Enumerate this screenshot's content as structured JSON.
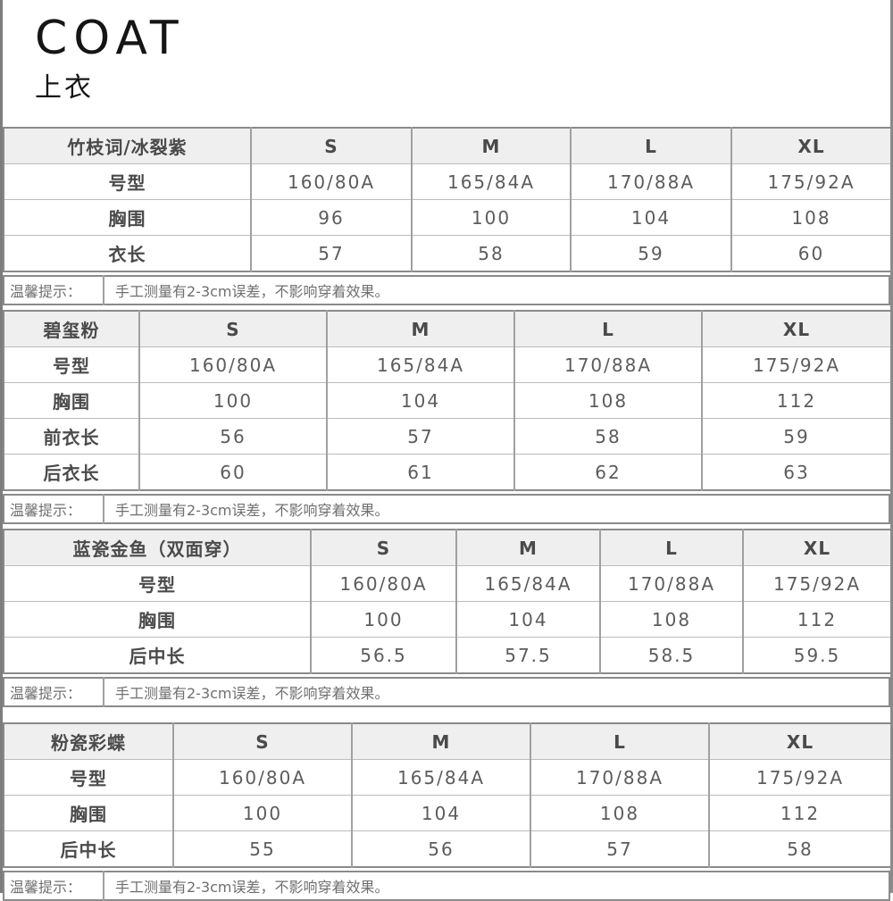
{
  "page": {
    "title": "COAT",
    "subtitle": "上衣"
  },
  "tip": {
    "label": "温馨提示：",
    "text": "手工测量有2-3cm误差，不影响穿着效果。"
  },
  "tables": [
    {
      "name": "竹枝词/冰裂紫",
      "sizes": [
        "S",
        "M",
        "L",
        "XL"
      ],
      "rows": [
        {
          "label": "号型",
          "values": [
            "160/80A",
            "165/84A",
            "170/88A",
            "175/92A"
          ]
        },
        {
          "label": "胸围",
          "values": [
            "96",
            "100",
            "104",
            "108"
          ]
        },
        {
          "label": "衣长",
          "values": [
            "57",
            "58",
            "59",
            "60"
          ]
        }
      ]
    },
    {
      "name": "碧玺粉",
      "sizes": [
        "S",
        "M",
        "L",
        "XL"
      ],
      "rows": [
        {
          "label": "号型",
          "values": [
            "160/80A",
            "165/84A",
            "170/88A",
            "175/92A"
          ]
        },
        {
          "label": "胸围",
          "values": [
            "100",
            "104",
            "108",
            "112"
          ]
        },
        {
          "label": "前衣长",
          "values": [
            "56",
            "57",
            "58",
            "59"
          ]
        },
        {
          "label": "后衣长",
          "values": [
            "60",
            "61",
            "62",
            "63"
          ]
        }
      ]
    },
    {
      "name": "蓝瓷金鱼（双面穿）",
      "sizes": [
        "S",
        "M",
        "L",
        "XL"
      ],
      "rows": [
        {
          "label": "号型",
          "values": [
            "160/80A",
            "165/84A",
            "170/88A",
            "175/92A"
          ]
        },
        {
          "label": "胸围",
          "values": [
            "100",
            "104",
            "108",
            "112"
          ]
        },
        {
          "label": "后中长",
          "values": [
            "56.5",
            "57.5",
            "58.5",
            "59.5"
          ]
        }
      ]
    },
    {
      "name": "粉瓷彩蝶",
      "sizes": [
        "S",
        "M",
        "L",
        "XL"
      ],
      "rows": [
        {
          "label": "号型",
          "values": [
            "160/80A",
            "165/84A",
            "170/88A",
            "175/92A"
          ]
        },
        {
          "label": "胸围",
          "values": [
            "100",
            "104",
            "108",
            "112"
          ]
        },
        {
          "label": "后中长",
          "values": [
            "55",
            "56",
            "57",
            "58"
          ]
        }
      ]
    }
  ],
  "colors": {
    "header_bg": "#efefef",
    "text": "#4d4d4d",
    "border_dark": "#8a8a8a",
    "border_light": "#bcbcbc"
  }
}
